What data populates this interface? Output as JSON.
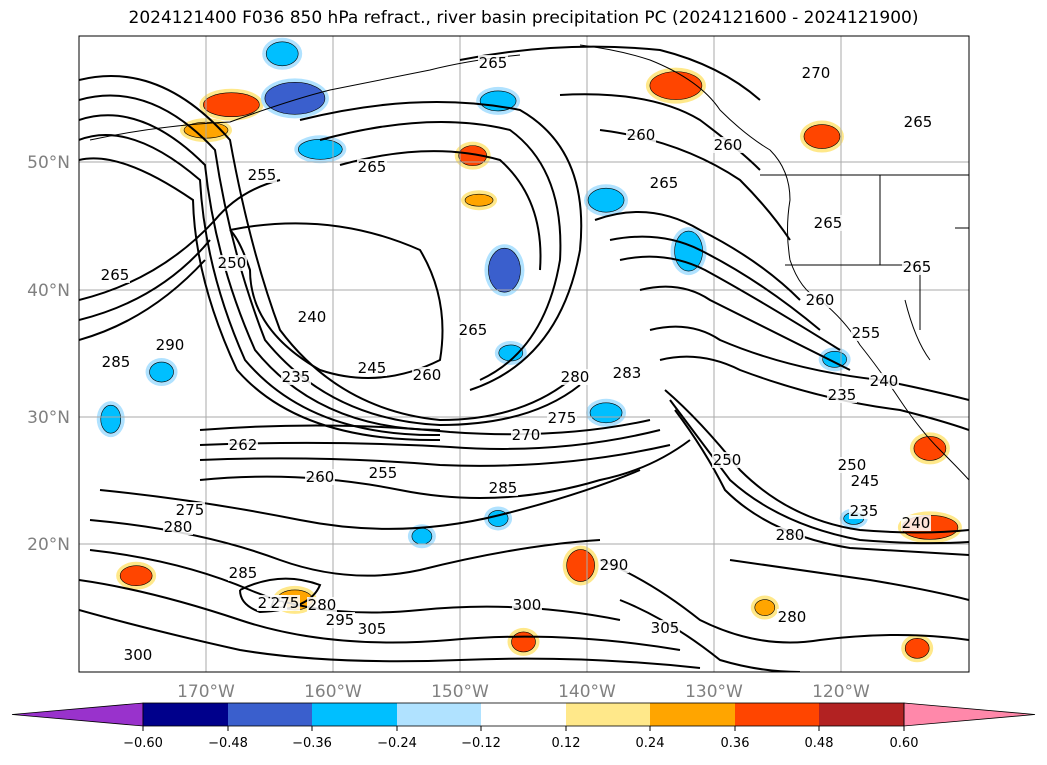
{
  "title": "2024121400 F036 850 hPa refract., river basin precipitation PC (2024121600 - 2024121900)",
  "lat_ticks": [
    "50°N",
    "40°N",
    "30°N",
    "20°N"
  ],
  "lon_ticks": [
    "170°W",
    "160°W",
    "150°W",
    "140°W",
    "130°W",
    "120°W"
  ],
  "colorbar": {
    "ticks": [
      "−0.60",
      "−0.48",
      "−0.36",
      "−0.24",
      "−0.12",
      "0.12",
      "0.24",
      "0.36",
      "0.48",
      "0.60"
    ],
    "colors": [
      "#9932cc",
      "#00008b",
      "#3a5fcd",
      "#00bfff",
      "#b0e2ff",
      "#ffffff",
      "#ffe88a",
      "#ffa500",
      "#ff4500",
      "#b22222",
      "#ff88aa"
    ]
  },
  "contour_labels": [
    "265",
    "255",
    "250",
    "240",
    "235",
    "245",
    "260",
    "265",
    "265",
    "260",
    "260",
    "265",
    "265",
    "270",
    "265",
    "290",
    "285",
    "262",
    "260",
    "255",
    "270",
    "275",
    "285",
    "280",
    "283",
    "250",
    "275",
    "280",
    "280",
    "290",
    "285",
    "300",
    "305",
    "280",
    "275",
    "300",
    "265",
    "260",
    "255",
    "240",
    "235",
    "250",
    "245",
    "235",
    "240",
    "305",
    "295",
    "275",
    "280",
    "265"
  ],
  "shading": [
    {
      "lon": -168,
      "lat": 54.5,
      "v": 0.36
    },
    {
      "lon": -170,
      "lat": 52.5,
      "v": 0.24
    },
    {
      "lon": -163,
      "lat": 55,
      "v": -0.36
    },
    {
      "lon": -161,
      "lat": 51,
      "v": -0.24
    },
    {
      "lon": -164,
      "lat": 58.5,
      "v": -0.24
    },
    {
      "lon": -147,
      "lat": 54.8,
      "v": -0.24
    },
    {
      "lon": -149,
      "lat": 50.5,
      "v": 0.36
    },
    {
      "lon": -148.5,
      "lat": 47,
      "v": 0.24
    },
    {
      "lon": -146.5,
      "lat": 41.5,
      "v": -0.36
    },
    {
      "lon": -138.5,
      "lat": 47,
      "v": -0.24
    },
    {
      "lon": -132,
      "lat": 43,
      "v": -0.24
    },
    {
      "lon": -133,
      "lat": 56,
      "v": 0.36
    },
    {
      "lon": -121.5,
      "lat": 52,
      "v": 0.36
    },
    {
      "lon": -146,
      "lat": 35,
      "v": -0.24
    },
    {
      "lon": -138.5,
      "lat": 30.3,
      "v": -0.24
    },
    {
      "lon": -120.5,
      "lat": 34.5,
      "v": -0.24
    },
    {
      "lon": -113,
      "lat": 27.5,
      "v": 0.36
    },
    {
      "lon": -113,
      "lat": 21.3,
      "v": 0.36
    },
    {
      "lon": -119,
      "lat": 22,
      "v": -0.24
    },
    {
      "lon": -140.5,
      "lat": 18.3,
      "v": 0.36
    },
    {
      "lon": -147,
      "lat": 22,
      "v": -0.24
    },
    {
      "lon": -153,
      "lat": 20.6,
      "v": -0.24
    },
    {
      "lon": -163,
      "lat": 15.6,
      "v": 0.24
    },
    {
      "lon": -175.5,
      "lat": 17.5,
      "v": 0.36
    },
    {
      "lon": -145,
      "lat": 12.3,
      "v": 0.36
    },
    {
      "lon": -126,
      "lat": 15,
      "v": 0.24
    },
    {
      "lon": -114,
      "lat": 11.8,
      "v": 0.36
    },
    {
      "lon": -173.5,
      "lat": 33.5,
      "v": -0.24
    },
    {
      "lon": -177.5,
      "lat": 29.8,
      "v": -0.24
    }
  ]
}
